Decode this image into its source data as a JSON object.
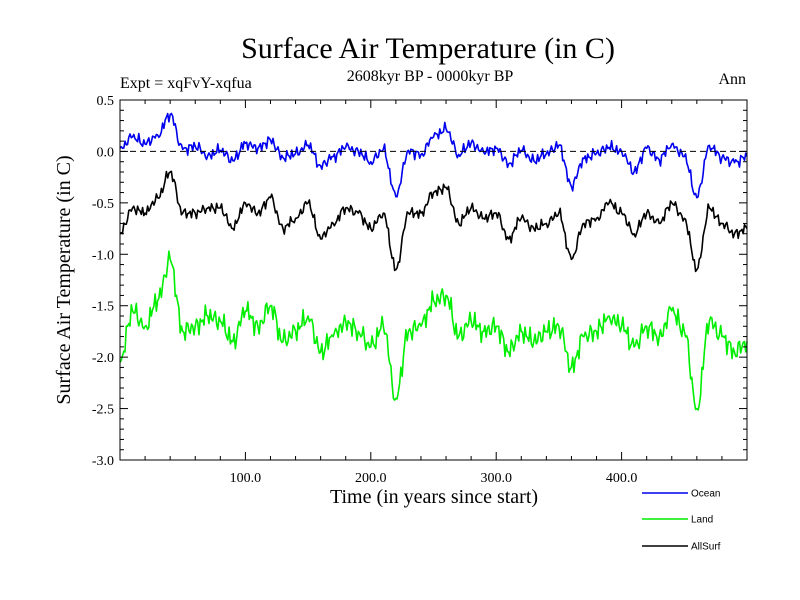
{
  "chart_data": {
    "type": "line",
    "title": "Surface Air Temperature (in C)",
    "subtitle": "2608kyr BP - 0000kyr BP",
    "expt_label": "Expt = xqFvY-xqfua",
    "period_label": "Ann",
    "xlabel": "Time (in years since start)",
    "ylabel": "Surface Air Temperature (in C)",
    "xlim": [
      0,
      500
    ],
    "ylim": [
      -3.0,
      0.5
    ],
    "x_tick_labels": [
      "100.0",
      "200.0",
      "300.0",
      "400.0"
    ],
    "x_tick_values": [
      100,
      200,
      300,
      400
    ],
    "y_tick_labels": [
      "0.5",
      "0.0",
      "-0.5",
      "-1.0",
      "-1.5",
      "-2.0",
      "-2.5",
      "-3.0"
    ],
    "y_tick_values": [
      0.5,
      0.0,
      -0.5,
      -1.0,
      -1.5,
      -2.0,
      -2.5,
      -3.0
    ],
    "reference_line": 0.0,
    "legend_position": "bottom-right, outside plot",
    "series": [
      {
        "name": "Ocean",
        "color": "#0000ee",
        "x_step": 10,
        "values": [
          0.03,
          0.14,
          0.07,
          0.16,
          0.36,
          0.02,
          0.05,
          -0.04,
          0.01,
          -0.09,
          0.08,
          0.03,
          0.11,
          -0.06,
          -0.02,
          0.06,
          -0.14,
          -0.05,
          0.04,
          0.0,
          -0.1,
          0.02,
          -0.44,
          0.01,
          -0.03,
          0.14,
          0.22,
          -0.03,
          0.08,
          -0.01,
          0.03,
          -0.12,
          0.01,
          -0.09,
          -0.02,
          0.06,
          -0.34,
          -0.07,
          -0.02,
          0.04,
          0.0,
          -0.2,
          0.03,
          -0.08,
          0.07,
          -0.05,
          -0.45,
          0.06,
          -0.06,
          -0.11,
          -0.05
        ]
      },
      {
        "name": "Land",
        "color": "#00ee00",
        "x_step": 10,
        "values": [
          -2.05,
          -1.55,
          -1.7,
          -1.45,
          -1.05,
          -1.75,
          -1.7,
          -1.6,
          -1.65,
          -1.85,
          -1.55,
          -1.7,
          -1.5,
          -1.85,
          -1.75,
          -1.6,
          -1.95,
          -1.8,
          -1.65,
          -1.75,
          -1.9,
          -1.7,
          -2.4,
          -1.75,
          -1.7,
          -1.45,
          -1.4,
          -1.8,
          -1.65,
          -1.75,
          -1.7,
          -1.95,
          -1.75,
          -1.85,
          -1.75,
          -1.7,
          -2.1,
          -1.8,
          -1.75,
          -1.6,
          -1.7,
          -1.9,
          -1.7,
          -1.8,
          -1.55,
          -1.75,
          -2.5,
          -1.65,
          -1.8,
          -1.95,
          -1.85
        ]
      },
      {
        "name": "AllSurf",
        "color": "#000000",
        "x_step": 10,
        "values": [
          -0.8,
          -0.55,
          -0.6,
          -0.45,
          -0.2,
          -0.6,
          -0.6,
          -0.55,
          -0.55,
          -0.75,
          -0.5,
          -0.6,
          -0.45,
          -0.75,
          -0.65,
          -0.5,
          -0.85,
          -0.7,
          -0.55,
          -0.6,
          -0.75,
          -0.6,
          -1.15,
          -0.6,
          -0.6,
          -0.4,
          -0.35,
          -0.7,
          -0.55,
          -0.65,
          -0.6,
          -0.85,
          -0.65,
          -0.75,
          -0.7,
          -0.6,
          -1.05,
          -0.7,
          -0.65,
          -0.5,
          -0.6,
          -0.8,
          -0.6,
          -0.7,
          -0.5,
          -0.65,
          -1.15,
          -0.55,
          -0.7,
          -0.8,
          -0.75
        ]
      }
    ]
  }
}
